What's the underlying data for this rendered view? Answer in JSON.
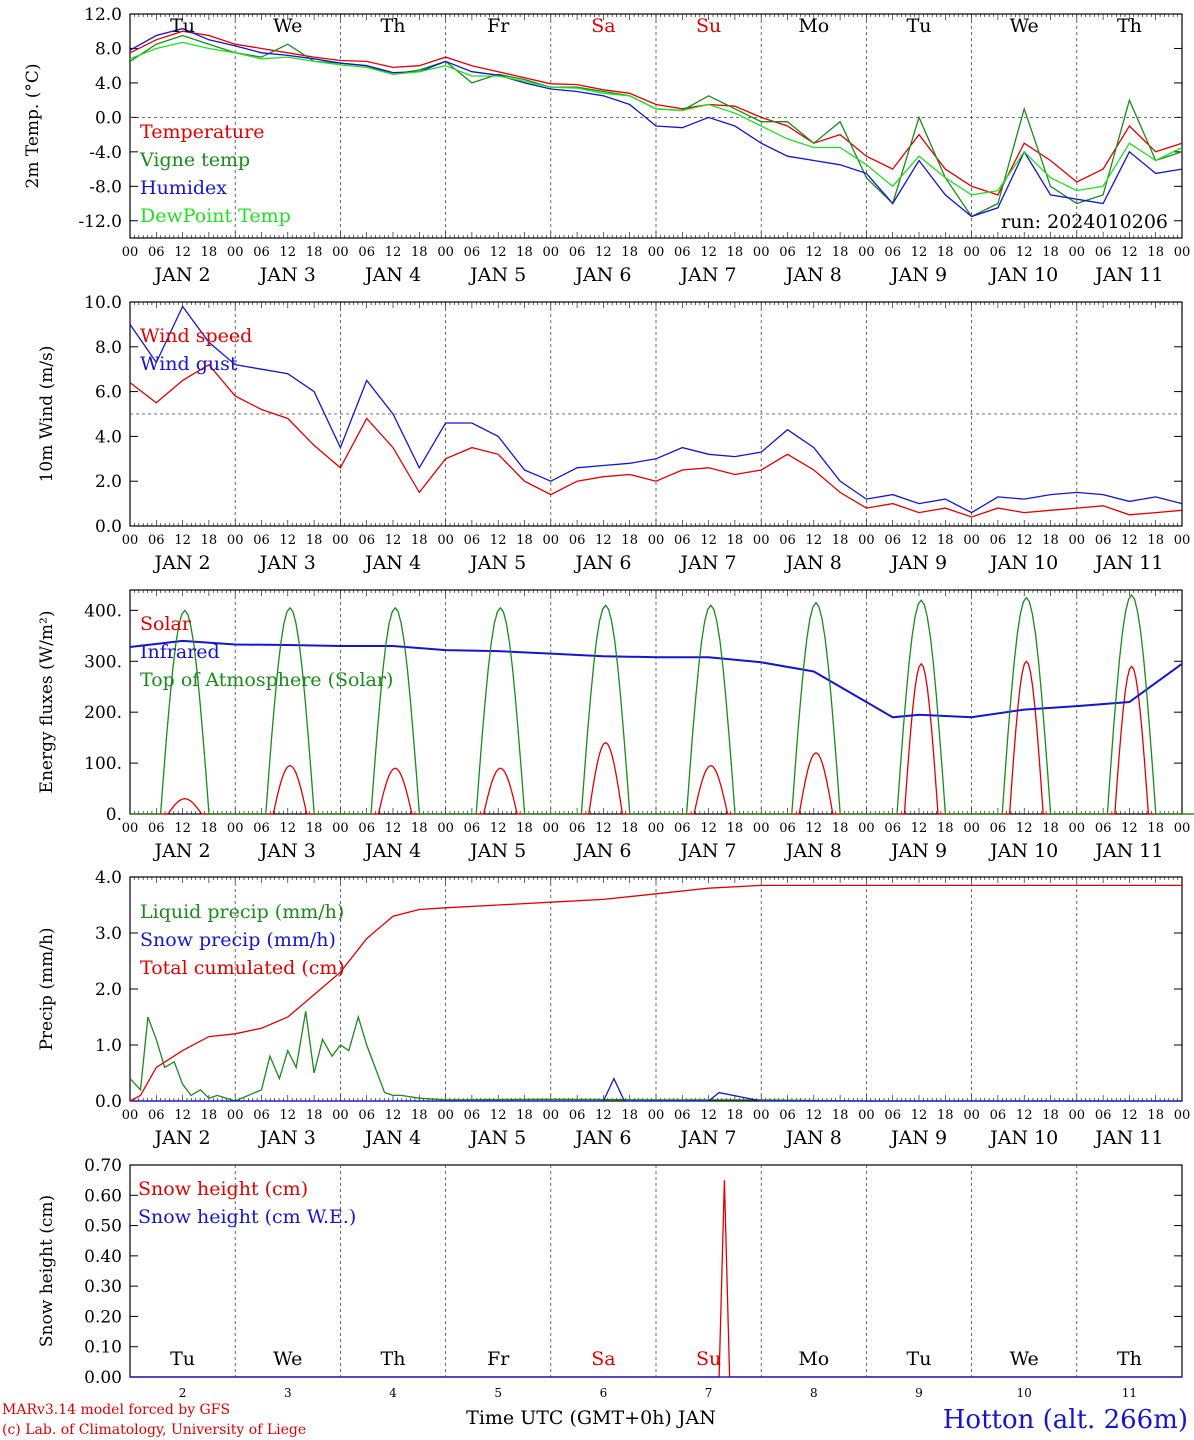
{
  "colors": {
    "red": "#e00000",
    "green": "#1a8a1a",
    "blue": "#1515d0",
    "lightgreen": "#20e020",
    "grid": "#444444"
  },
  "days": [
    "Tu",
    "We",
    "Th",
    "Fr",
    "Sa",
    "Su",
    "Mo",
    "Tu",
    "We",
    "Th"
  ],
  "weekend_days": [
    "Sa",
    "Su"
  ],
  "hour_labels": [
    "00",
    "06",
    "12",
    "18"
  ],
  "date_labels": [
    "JAN  2",
    "JAN  3",
    "JAN  4",
    "JAN  5",
    "JAN  6",
    "JAN  7",
    "JAN  8",
    "JAN  9",
    "JAN 10",
    "JAN 11"
  ],
  "day_numbers": [
    "2",
    "3",
    "4",
    "5",
    "6",
    "7",
    "8",
    "9",
    "10",
    "11"
  ],
  "run_label": "run: 2024010206",
  "xlabel": "Time UTC (GMT+0h) JAN",
  "footer": {
    "line1": "MARv3.14 model forced by GFS",
    "line2": "(c) Lab. of Climatology, University of Liege"
  },
  "station": "Hotton (alt. 266m)",
  "chart_data": [
    {
      "type": "line",
      "ylabel": "2m Temp. (°C)",
      "ylim": [
        -14,
        12
      ],
      "yticks": [
        "12.0",
        "8.0",
        "4.0",
        "0.0",
        "-4.0",
        "-8.0",
        "-12.0"
      ],
      "ytick_values": [
        12,
        8,
        4,
        0,
        -4,
        -8,
        -12
      ],
      "x_unit": "days since JAN 2 00 UTC",
      "series": [
        {
          "name": "Temperature",
          "color": "red",
          "x": [
            0,
            0.25,
            0.5,
            0.75,
            1,
            1.25,
            1.5,
            1.75,
            2,
            2.25,
            2.5,
            2.75,
            3,
            3.25,
            3.5,
            3.75,
            4,
            4.25,
            4.5,
            4.75,
            5,
            5.25,
            5.5,
            5.75,
            6,
            6.25,
            6.5,
            6.75,
            7,
            7.25,
            7.5,
            7.75,
            8,
            8.25,
            8.5,
            8.75,
            9,
            9.25,
            9.5,
            9.75,
            10
          ],
          "values": [
            7.5,
            9,
            10,
            9.5,
            8.5,
            8,
            7.5,
            7,
            6.6,
            6.5,
            5.8,
            6,
            7,
            6,
            5.3,
            4.6,
            3.9,
            3.8,
            3.2,
            2.8,
            1.5,
            1,
            1.5,
            1.3,
            0,
            -1,
            -3,
            -2,
            -4.5,
            -6,
            -2,
            -6,
            -8,
            -9,
            -3,
            -5,
            -7.5,
            -6,
            -1,
            -4,
            -3
          ]
        },
        {
          "name": "Vigne temp",
          "color": "green",
          "x": [
            0,
            0.25,
            0.5,
            0.75,
            1,
            1.25,
            1.5,
            1.75,
            2,
            2.25,
            2.5,
            2.75,
            3,
            3.25,
            3.5,
            3.75,
            4,
            4.25,
            4.5,
            4.75,
            5,
            5.25,
            5.5,
            5.75,
            6,
            6.25,
            6.5,
            6.75,
            7,
            7.25,
            7.5,
            7.75,
            8,
            8.25,
            8.5,
            8.75,
            9,
            9.25,
            9.5,
            9.75,
            10
          ],
          "values": [
            6.5,
            8.5,
            9.5,
            8.5,
            7.5,
            7,
            8.5,
            6.5,
            6.3,
            6,
            5,
            5.5,
            6.5,
            4,
            5,
            4.4,
            3.5,
            3.5,
            3,
            2.5,
            1,
            0.8,
            2.5,
            1,
            -0.5,
            -0.5,
            -3,
            -0.5,
            -7,
            -10,
            0,
            -7,
            -11.5,
            -10,
            1,
            -8,
            -10,
            -9,
            2,
            -5,
            -4
          ]
        },
        {
          "name": "Humidex",
          "color": "blue",
          "x": [
            0,
            0.25,
            0.5,
            0.75,
            1,
            1.25,
            1.5,
            1.75,
            2,
            2.25,
            2.5,
            2.75,
            3,
            3.25,
            3.5,
            3.75,
            4,
            4.25,
            4.5,
            4.75,
            5,
            5.25,
            5.5,
            5.75,
            6,
            6.25,
            6.5,
            6.75,
            7,
            7.25,
            7.5,
            7.75,
            8,
            8.25,
            8.5,
            8.75,
            9,
            9.25,
            9.5,
            9.75,
            10
          ],
          "values": [
            7.8,
            9.5,
            10.3,
            9,
            8.3,
            7.5,
            7.2,
            6.8,
            6.3,
            6,
            5.2,
            5.3,
            6.5,
            5.3,
            4.9,
            4,
            3.3,
            3,
            2.5,
            1.5,
            -1,
            -1.2,
            0,
            -1,
            -3,
            -4.5,
            -5,
            -5.5,
            -6.5,
            -10,
            -5,
            -9,
            -11.5,
            -10.5,
            -4,
            -9,
            -9.5,
            -10,
            -4,
            -6.5,
            -6
          ]
        },
        {
          "name": "DewPoint Temp",
          "color": "lightgreen",
          "x": [
            0,
            0.25,
            0.5,
            0.75,
            1,
            1.25,
            1.5,
            1.75,
            2,
            2.25,
            2.5,
            2.75,
            3,
            3.25,
            3.5,
            3.75,
            4,
            4.25,
            4.5,
            4.75,
            5,
            5.25,
            5.5,
            5.75,
            6,
            6.25,
            6.5,
            6.75,
            7,
            7.25,
            7.5,
            7.75,
            8,
            8.25,
            8.5,
            8.75,
            9,
            9.25,
            9.5,
            9.75,
            10
          ],
          "values": [
            6.8,
            8,
            8.7,
            8,
            7.5,
            6.8,
            7,
            6.5,
            6.1,
            5.8,
            5,
            5.3,
            6,
            4.8,
            4.8,
            4.2,
            3.5,
            3.4,
            2.8,
            2.5,
            1,
            0.8,
            1.5,
            0.5,
            -1,
            -2.5,
            -3.5,
            -3.5,
            -5.5,
            -8,
            -4.5,
            -7,
            -9,
            -8.5,
            -4,
            -7,
            -8.5,
            -8,
            -3,
            -5,
            -3.5
          ]
        }
      ]
    },
    {
      "type": "line",
      "ylabel": "10m Wind (m/s)",
      "ylim": [
        0,
        10
      ],
      "yticks": [
        "10.0",
        "8.0",
        "6.0",
        "4.0",
        "2.0",
        "0.0"
      ],
      "ytick_values": [
        10,
        8,
        6,
        4,
        2,
        0
      ],
      "x_unit": "days since JAN 2 00 UTC",
      "series": [
        {
          "name": "Wind speed",
          "color": "red",
          "x": [
            0,
            0.25,
            0.5,
            0.75,
            1,
            1.25,
            1.5,
            1.75,
            2,
            2.25,
            2.5,
            2.75,
            3,
            3.25,
            3.5,
            3.75,
            4,
            4.25,
            4.5,
            4.75,
            5,
            5.25,
            5.5,
            5.75,
            6,
            6.25,
            6.5,
            6.75,
            7,
            7.25,
            7.5,
            7.75,
            8,
            8.25,
            8.5,
            8.75,
            9,
            9.25,
            9.5,
            9.75,
            10
          ],
          "values": [
            6.4,
            5.5,
            6.5,
            7.2,
            5.8,
            5.2,
            4.8,
            3.6,
            2.6,
            4.8,
            3.5,
            1.5,
            3,
            3.5,
            3.2,
            2,
            1.4,
            2,
            2.2,
            2.3,
            2,
            2.5,
            2.6,
            2.3,
            2.5,
            3.2,
            2.5,
            1.5,
            0.8,
            1,
            0.6,
            0.8,
            0.4,
            0.8,
            0.6,
            0.7,
            0.8,
            0.9,
            0.5,
            0.6,
            0.7
          ]
        },
        {
          "name": "Wind gust",
          "color": "blue",
          "x": [
            0,
            0.25,
            0.5,
            0.75,
            1,
            1.25,
            1.5,
            1.75,
            2,
            2.25,
            2.5,
            2.75,
            3,
            3.25,
            3.5,
            3.75,
            4,
            4.25,
            4.5,
            4.75,
            5,
            5.25,
            5.5,
            5.75,
            6,
            6.25,
            6.5,
            6.75,
            7,
            7.25,
            7.5,
            7.75,
            8,
            8.25,
            8.5,
            8.75,
            9,
            9.25,
            9.5,
            9.75,
            10
          ],
          "values": [
            9,
            7.3,
            9.8,
            8.2,
            7.2,
            7,
            6.8,
            6,
            3.5,
            6.5,
            5,
            2.6,
            4.6,
            4.6,
            4,
            2.5,
            2,
            2.6,
            2.7,
            2.8,
            3,
            3.5,
            3.2,
            3.1,
            3.3,
            4.3,
            3.5,
            2,
            1.2,
            1.4,
            1,
            1.2,
            0.6,
            1.3,
            1.2,
            1.4,
            1.5,
            1.4,
            1.1,
            1.3,
            1
          ]
        }
      ]
    },
    {
      "type": "line",
      "ylabel": "Energy fluxes (W/m²)",
      "ylim": [
        0,
        440
      ],
      "yticks": [
        "400.",
        "300.",
        "200.",
        "100.",
        "0."
      ],
      "ytick_values": [
        400,
        300,
        200,
        100,
        0
      ],
      "x_unit": "days since JAN 2 00 UTC",
      "series": [
        {
          "name": "Solar",
          "color": "red",
          "daily_peak_hour": 12.5,
          "daily_peaks": [
            30,
            95,
            90,
            90,
            140,
            95,
            120,
            295,
            300,
            290
          ]
        },
        {
          "name": "Infrared",
          "color": "blue",
          "x": [
            0,
            0.5,
            1,
            1.5,
            2,
            2.5,
            3,
            3.5,
            4,
            4.5,
            5,
            5.5,
            6,
            6.5,
            7,
            7.25,
            7.5,
            8,
            8.5,
            9,
            9.5,
            10
          ],
          "values": [
            328,
            340,
            333,
            332,
            330,
            330,
            322,
            320,
            315,
            310,
            308,
            308,
            298,
            280,
            220,
            190,
            195,
            190,
            205,
            212,
            220,
            295
          ]
        },
        {
          "name": "Top of Atmosphere (Solar)",
          "color": "green",
          "daily_peak_hour": 12.5,
          "daily_peaks": [
            400,
            405,
            405,
            405,
            410,
            410,
            415,
            420,
            425,
            430
          ]
        }
      ]
    },
    {
      "type": "line",
      "ylabel": "Precip (mm/h)",
      "ylim": [
        0,
        4
      ],
      "yticks": [
        "4.0",
        "3.0",
        "2.0",
        "1.0",
        "0.0"
      ],
      "ytick_values": [
        4,
        3,
        2,
        1,
        0
      ],
      "x_unit": "days since JAN 2 00 UTC",
      "series": [
        {
          "name": "Liquid precip (mm/h)",
          "color": "green",
          "x": [
            0,
            0.1,
            0.17,
            0.25,
            0.33,
            0.42,
            0.5,
            0.58,
            0.67,
            0.75,
            0.83,
            1,
            1.25,
            1.33,
            1.42,
            1.5,
            1.58,
            1.67,
            1.75,
            1.83,
            1.92,
            2,
            2.08,
            2.17,
            2.25,
            2.33,
            2.42,
            2.5,
            2.58,
            2.75,
            3,
            4,
            5,
            6,
            7,
            10
          ],
          "values": [
            0.4,
            0.2,
            1.5,
            1.1,
            0.6,
            0.7,
            0.3,
            0.1,
            0.2,
            0.05,
            0.1,
            0,
            0.2,
            0.8,
            0.4,
            0.9,
            0.6,
            1.6,
            0.5,
            1.1,
            0.8,
            1,
            0.9,
            1.5,
            1,
            0.6,
            0.15,
            0.1,
            0.1,
            0.05,
            0.02,
            0.03,
            0.02,
            0.02,
            0,
            0
          ]
        },
        {
          "name": "Snow precip (mm/h)",
          "color": "blue",
          "x": [
            0,
            4,
            4.5,
            4.6,
            4.7,
            5,
            5.5,
            5.6,
            6,
            10
          ],
          "values": [
            0,
            0,
            0,
            0.4,
            0,
            0,
            0,
            0.15,
            0,
            0
          ]
        },
        {
          "name": "Total cumulated (cm)",
          "color": "red",
          "x": [
            0,
            0.1,
            0.25,
            0.5,
            0.75,
            1,
            1.25,
            1.5,
            1.75,
            2,
            2.25,
            2.5,
            2.75,
            3,
            3.5,
            4,
            4.5,
            5,
            5.5,
            6,
            10
          ],
          "values": [
            0,
            0.1,
            0.6,
            0.9,
            1.15,
            1.2,
            1.3,
            1.5,
            1.9,
            2.3,
            2.9,
            3.3,
            3.42,
            3.45,
            3.5,
            3.55,
            3.6,
            3.7,
            3.8,
            3.85,
            3.85
          ]
        }
      ]
    },
    {
      "type": "line",
      "ylabel": "Snow height (cm)",
      "ylim": [
        0,
        0.7
      ],
      "yticks": [
        "0.70",
        "0.60",
        "0.50",
        "0.40",
        "0.30",
        "0.20",
        "0.10",
        "0.00"
      ],
      "ytick_values": [
        0.7,
        0.6,
        0.5,
        0.4,
        0.3,
        0.2,
        0.1,
        0
      ],
      "x_unit": "days since JAN 2 00 UTC",
      "series": [
        {
          "name": "Snow height (cm)",
          "color": "red",
          "x": [
            0,
            5.6,
            5.65,
            5.7,
            10
          ],
          "values": [
            0,
            0,
            0.65,
            0,
            0
          ]
        },
        {
          "name": "Snow height (cm W.E.)",
          "color": "blue",
          "x": [
            0,
            10
          ],
          "values": [
            0,
            0
          ]
        }
      ]
    }
  ]
}
